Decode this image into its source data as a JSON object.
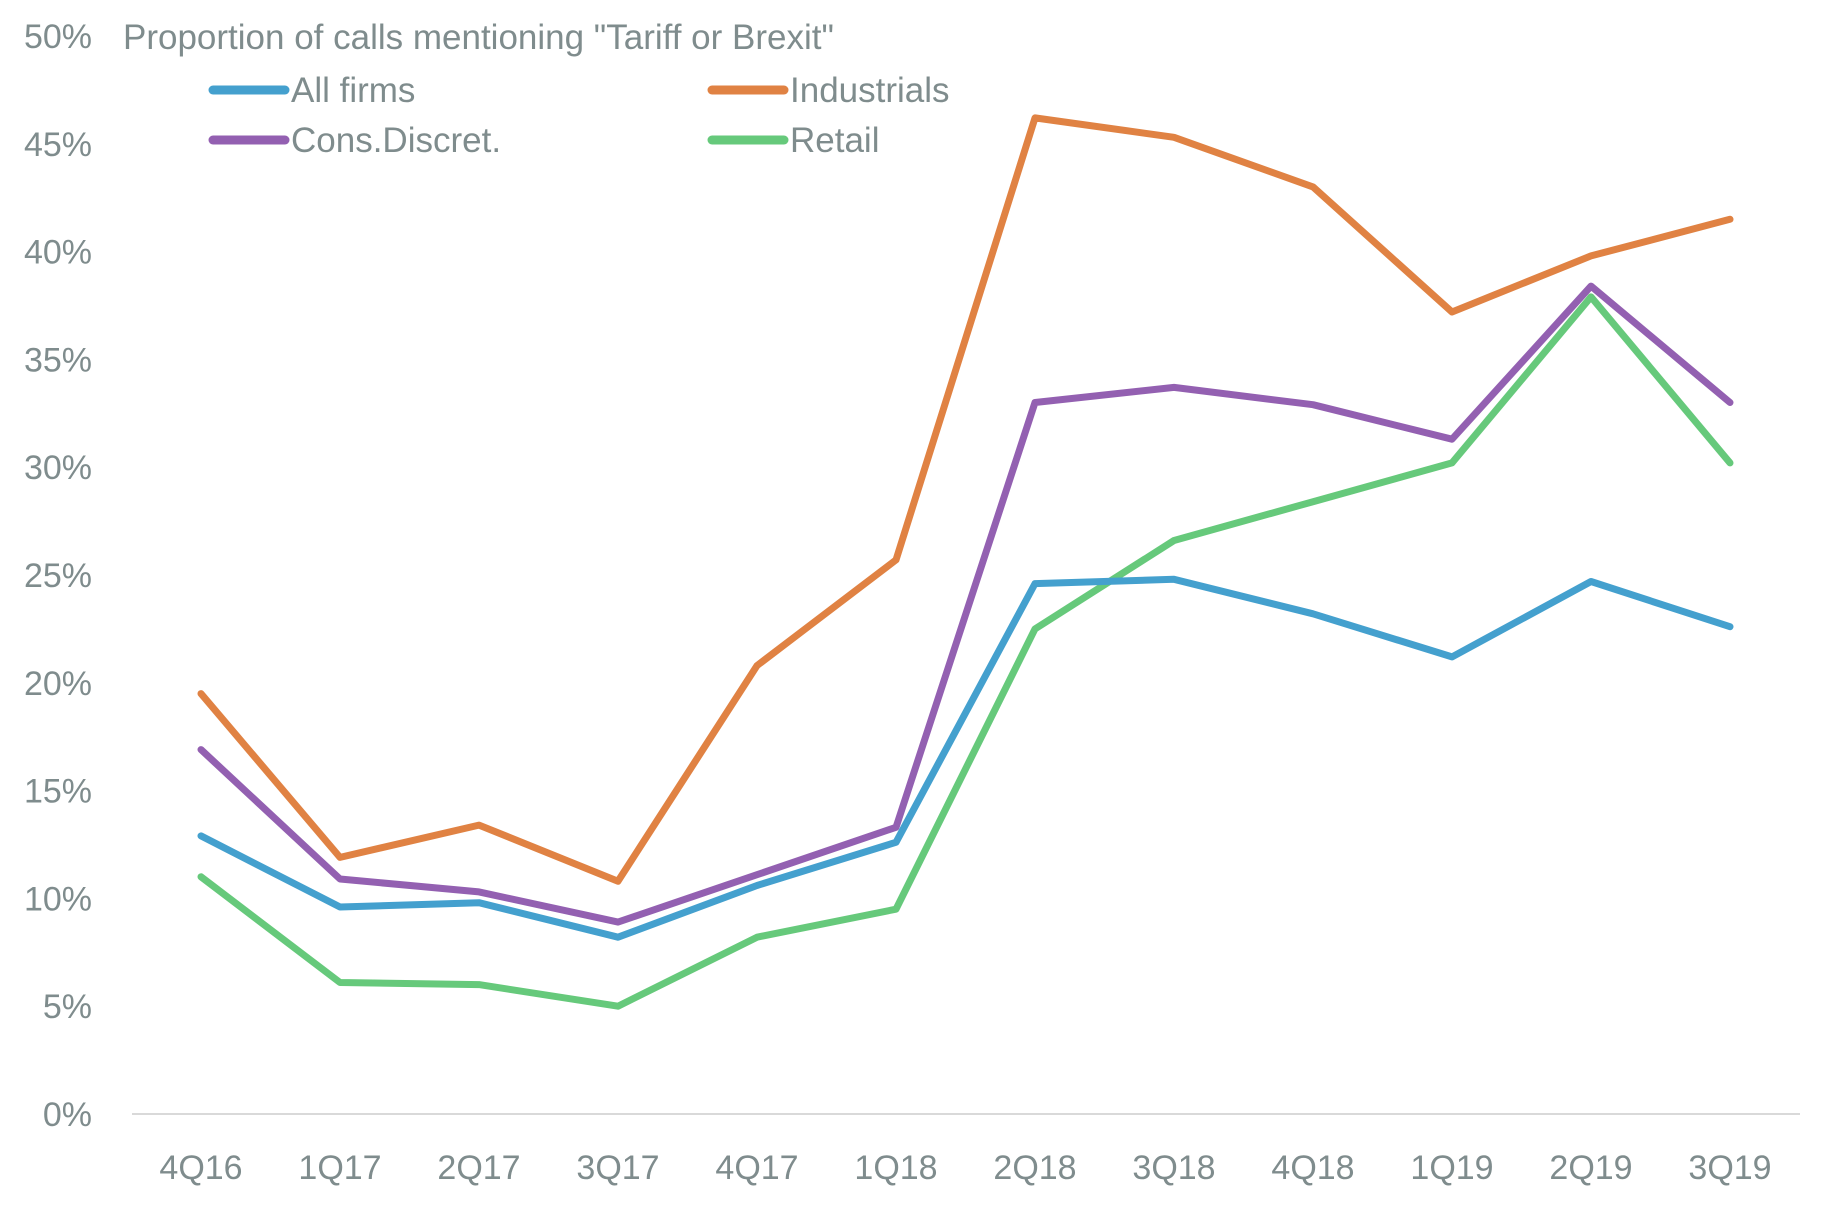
{
  "chart_data": {
    "type": "line",
    "title": "Proportion of calls mentioning \"Tariff or Brexit\"",
    "xlabel": "",
    "ylabel": "",
    "ylim": [
      0,
      50
    ],
    "y_ticks": [
      "0%",
      "5%",
      "10%",
      "15%",
      "20%",
      "25%",
      "30%",
      "35%",
      "40%",
      "45%",
      "50%"
    ],
    "y_tick_values": [
      0,
      5,
      10,
      15,
      20,
      25,
      30,
      35,
      40,
      45,
      50
    ],
    "grid": false,
    "legend_position": "top-left",
    "categories": [
      "4Q16",
      "1Q17",
      "2Q17",
      "3Q17",
      "4Q17",
      "1Q18",
      "2Q18",
      "3Q18",
      "4Q18",
      "1Q19",
      "2Q19",
      "3Q19"
    ],
    "series": [
      {
        "name": "All firms",
        "color": "#44a0ce",
        "values": [
          12.9,
          9.6,
          9.8,
          8.2,
          10.6,
          12.6,
          24.6,
          24.8,
          23.2,
          21.2,
          24.7,
          22.6
        ]
      },
      {
        "name": "Industrials",
        "color": "#e08243",
        "values": [
          19.5,
          11.9,
          13.4,
          10.8,
          20.8,
          25.7,
          46.2,
          45.3,
          43.0,
          37.2,
          39.8,
          41.5
        ]
      },
      {
        "name": "Cons.Discret.",
        "color": "#9360b1",
        "values": [
          16.9,
          10.9,
          10.3,
          8.9,
          11.1,
          13.3,
          33.0,
          33.7,
          32.9,
          31.3,
          38.4,
          33.0
        ]
      },
      {
        "name": "Retail",
        "color": "#66c97b",
        "values": [
          11.0,
          6.1,
          6.0,
          5.0,
          8.2,
          9.5,
          22.5,
          26.6,
          28.4,
          30.2,
          37.9,
          30.2
        ]
      }
    ]
  }
}
